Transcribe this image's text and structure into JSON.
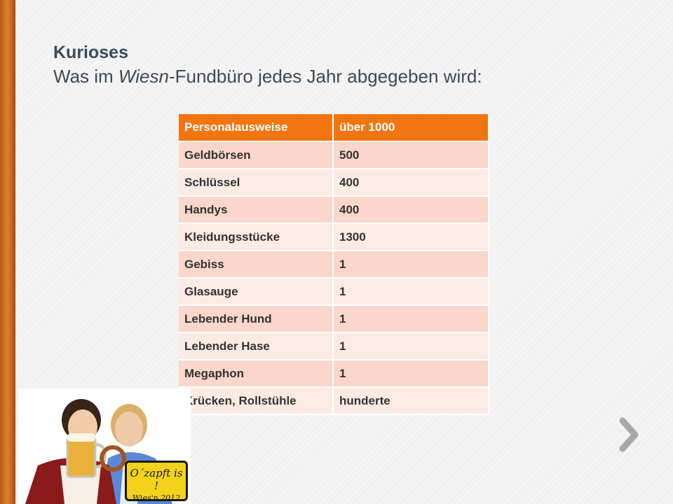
{
  "slide": {
    "title": "Kurioses",
    "subtitle_pre": "Was im ",
    "subtitle_em": "Wiesn",
    "subtitle_post": "-Fundbüro jedes Jahr abgegeben wird:"
  },
  "table": {
    "header": [
      "Personalausweise",
      "über 1000"
    ],
    "rows": [
      [
        "Geldbörsen",
        "500"
      ],
      [
        "Schlüssel",
        "400"
      ],
      [
        "Handys",
        "400"
      ],
      [
        "Kleidungsstücke",
        "1300"
      ],
      [
        "Gebiss",
        "1"
      ],
      [
        "Glasauge",
        "1"
      ],
      [
        "Lebender Hund",
        "1"
      ],
      [
        "Lebender Hase",
        "1"
      ],
      [
        "Megaphon",
        "1"
      ],
      [
        "Krücken, Rollstühle",
        "hunderte"
      ]
    ]
  },
  "image": {
    "sign_line1": "O´zapft is !",
    "sign_line2": "Wies'n 2012"
  },
  "colors": {
    "accent": "#f27512",
    "row_dark": "#fad6cb",
    "row_light": "#fcebe5",
    "title": "#3b4a5a",
    "sidebar": "#d9822f"
  },
  "icons": {
    "next": "chevron-right-icon"
  }
}
